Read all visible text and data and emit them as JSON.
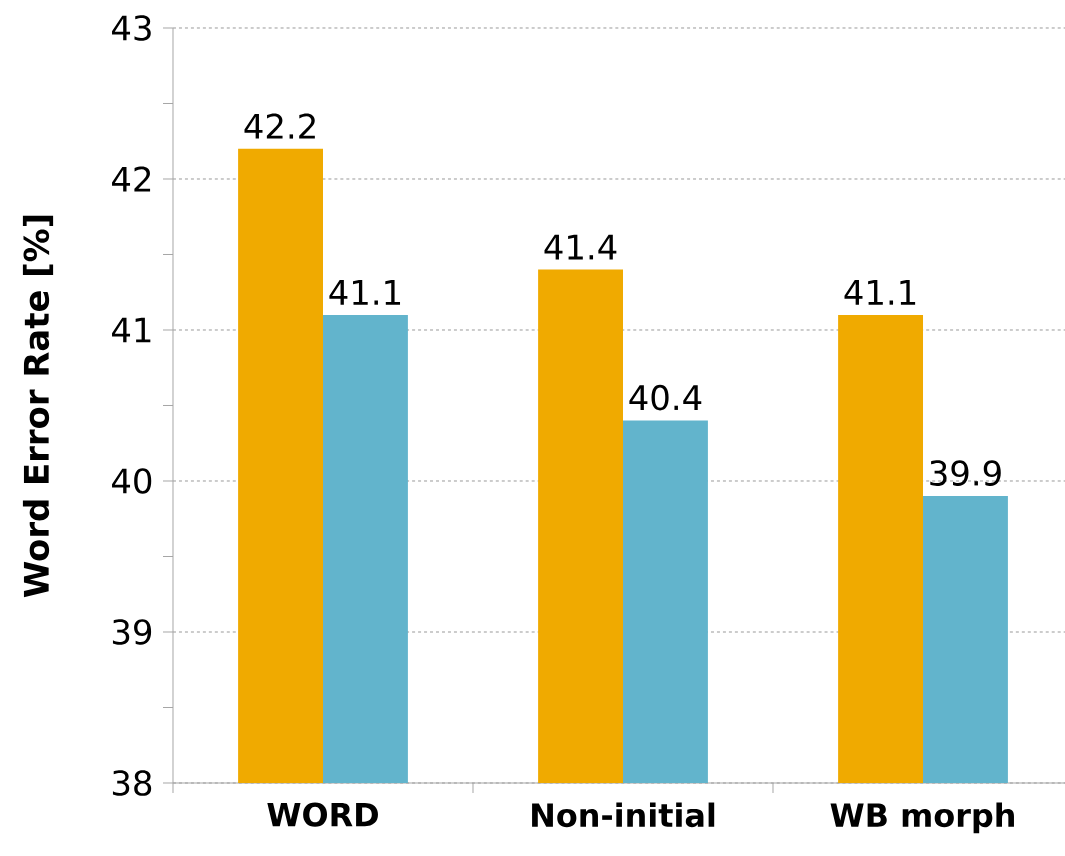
{
  "chart_data": {
    "type": "bar",
    "ylabel": "**Word Error Rate** [%]",
    "categories": [
      "WORD",
      "Non-initial",
      "WB morph"
    ],
    "series": [
      {
        "color": "#f0aa00",
        "values": [
          42.2,
          41.4,
          41.1
        ]
      },
      {
        "color": "#62b4cc",
        "values": [
          41.1,
          40.4,
          39.9
        ]
      }
    ],
    "ylim": [
      38,
      43
    ],
    "yticks": [
      38,
      {
        "value": 38.5,
        "label": null
      },
      39,
      {
        "value": 39.5,
        "label": null
      },
      40,
      {
        "value": 40.5,
        "label": null
      },
      41,
      {
        "value": 41.5,
        "label": null
      },
      42,
      {
        "value": 42.5,
        "label": null
      },
      43
    ],
    "grid": "y",
    "data_labels": true
  }
}
